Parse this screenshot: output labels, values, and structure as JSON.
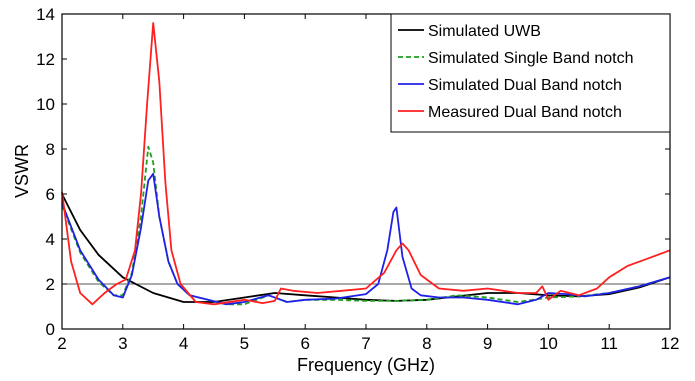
{
  "chart_data": {
    "type": "line",
    "title": "",
    "xlabel": "Frequency (GHz)",
    "ylabel": "VSWR",
    "xlim": [
      2,
      12
    ],
    "ylim": [
      0,
      14
    ],
    "xticks": [
      "2",
      "3",
      "4",
      "5",
      "6",
      "7",
      "8",
      "9",
      "10",
      "11",
      "12"
    ],
    "yticks": [
      "0",
      "2",
      "4",
      "6",
      "8",
      "10",
      "12",
      "14"
    ],
    "grid": false,
    "legend_position": "top-right",
    "reference_line": {
      "y": 2,
      "color": "#555555"
    },
    "series": [
      {
        "name": "Simulated UWB",
        "color": "#000000",
        "dash": "solid",
        "x": [
          2,
          2.3,
          2.6,
          3,
          3.5,
          4,
          4.5,
          5,
          5.5,
          6,
          6.5,
          7,
          7.5,
          8,
          8.5,
          9,
          9.5,
          10,
          10.5,
          11,
          11.5,
          12
        ],
        "y": [
          6.0,
          4.4,
          3.3,
          2.3,
          1.6,
          1.2,
          1.2,
          1.4,
          1.6,
          1.5,
          1.4,
          1.3,
          1.25,
          1.3,
          1.45,
          1.6,
          1.6,
          1.5,
          1.45,
          1.55,
          1.85,
          2.3
        ]
      },
      {
        "name": "Simulated Single Band notch",
        "color": "#1f9e1f",
        "dash": "dashed",
        "x": [
          2,
          2.3,
          2.6,
          2.85,
          3.0,
          3.15,
          3.3,
          3.42,
          3.5,
          3.6,
          3.75,
          3.9,
          4.1,
          4.4,
          4.7,
          5,
          5.4,
          5.7,
          6,
          6.5,
          7,
          7.5,
          8,
          8.5,
          9,
          9.5,
          10,
          10.5,
          11,
          11.5,
          12
        ],
        "y": [
          5.5,
          3.4,
          2.1,
          1.5,
          1.5,
          2.5,
          5.0,
          8.1,
          7.4,
          5.0,
          3.0,
          2.0,
          1.5,
          1.3,
          1.1,
          1.1,
          1.5,
          1.2,
          1.3,
          1.3,
          1.25,
          1.25,
          1.3,
          1.5,
          1.4,
          1.2,
          1.4,
          1.45,
          1.6,
          1.9,
          2.3
        ]
      },
      {
        "name": "Simulated Dual Band notch",
        "color": "#2020e8",
        "dash": "solid",
        "x": [
          2,
          2.3,
          2.6,
          2.85,
          3.0,
          3.15,
          3.3,
          3.42,
          3.5,
          3.6,
          3.75,
          3.9,
          4.1,
          4.4,
          4.7,
          5,
          5.4,
          5.7,
          6,
          6.5,
          7,
          7.2,
          7.35,
          7.45,
          7.5,
          7.6,
          7.75,
          7.9,
          8.2,
          8.6,
          9,
          9.5,
          9.8,
          10,
          10.3,
          10.6,
          11,
          11.5,
          12
        ],
        "y": [
          5.6,
          3.5,
          2.2,
          1.5,
          1.4,
          2.4,
          4.5,
          6.6,
          6.9,
          5.0,
          3.0,
          2.0,
          1.5,
          1.3,
          1.1,
          1.2,
          1.5,
          1.2,
          1.3,
          1.35,
          1.55,
          2.0,
          3.5,
          5.2,
          5.4,
          3.2,
          1.8,
          1.5,
          1.4,
          1.4,
          1.3,
          1.1,
          1.3,
          1.6,
          1.55,
          1.45,
          1.6,
          1.9,
          2.3
        ]
      },
      {
        "name": "Measured Dual Band notch",
        "color": "#ff2020",
        "dash": "solid",
        "x": [
          2,
          2.15,
          2.3,
          2.5,
          2.7,
          2.9,
          3.05,
          3.2,
          3.3,
          3.4,
          3.5,
          3.6,
          3.7,
          3.8,
          3.95,
          4.2,
          4.5,
          5,
          5.3,
          5.5,
          5.6,
          5.8,
          6.2,
          6.6,
          7,
          7.3,
          7.5,
          7.6,
          7.7,
          7.9,
          8.2,
          8.6,
          9,
          9.5,
          9.8,
          9.9,
          10,
          10.2,
          10.5,
          10.8,
          11,
          11.3,
          11.6,
          12
        ],
        "y": [
          6.1,
          3.0,
          1.6,
          1.1,
          1.6,
          2.0,
          2.2,
          3.5,
          6.0,
          10.0,
          13.6,
          11.0,
          6.5,
          3.5,
          2.0,
          1.2,
          1.1,
          1.3,
          1.15,
          1.25,
          1.8,
          1.7,
          1.6,
          1.7,
          1.8,
          2.5,
          3.5,
          3.8,
          3.5,
          2.4,
          1.8,
          1.7,
          1.8,
          1.6,
          1.6,
          1.9,
          1.3,
          1.7,
          1.5,
          1.8,
          2.3,
          2.8,
          3.1,
          3.5
        ]
      }
    ]
  }
}
